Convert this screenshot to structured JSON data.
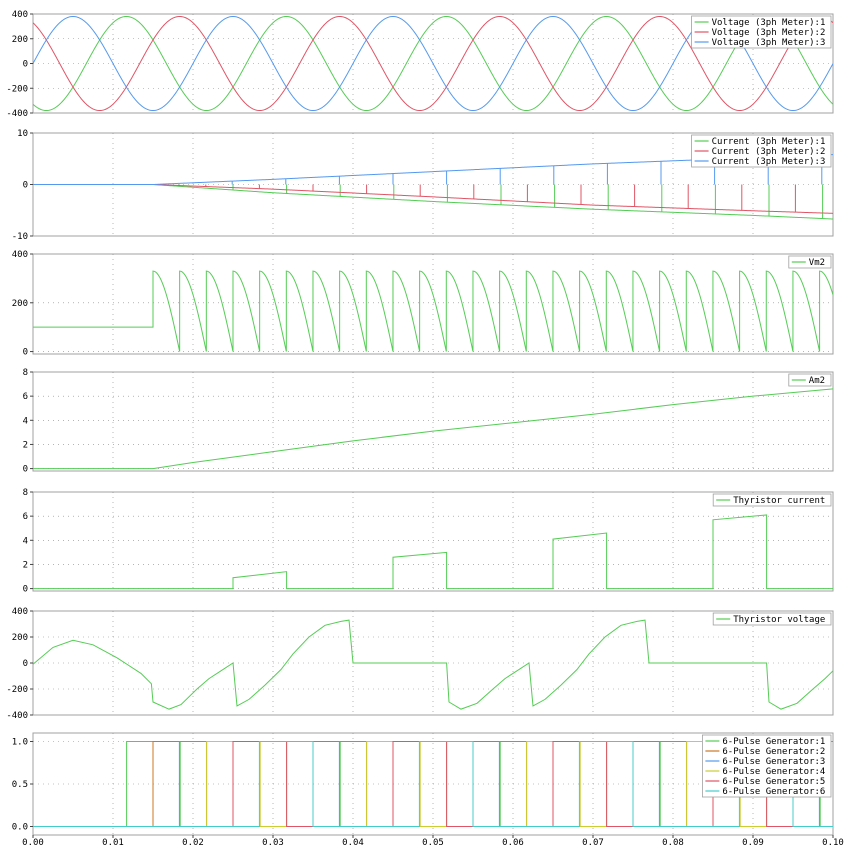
{
  "chart_data": [
    {
      "type": "line",
      "ylim": [
        -400,
        400
      ],
      "yticks": [
        400,
        200,
        0,
        -200,
        -400
      ],
      "legend_position": "top-right",
      "series": [
        {
          "name": "Voltage (3ph Meter):1",
          "color": "#55cc55",
          "kind": "sine",
          "amplitude": 380,
          "frequency_hz": 50,
          "phase_deg": -120
        },
        {
          "name": "Voltage (3ph Meter):2",
          "color": "#e05566",
          "kind": "sine",
          "amplitude": 380,
          "frequency_hz": 50,
          "phase_deg": 120
        },
        {
          "name": "Voltage (3ph Meter):3",
          "color": "#5599ee",
          "kind": "sine",
          "amplitude": 380,
          "frequency_hz": 50,
          "phase_deg": 0
        }
      ]
    },
    {
      "type": "line",
      "ylim": [
        -10,
        10
      ],
      "yticks": [
        10,
        0,
        -10
      ],
      "legend_position": "top-right",
      "series": [
        {
          "name": "Current (3ph Meter):1",
          "color": "#55cc55",
          "points": [
            [
              0,
              0
            ],
            [
              0.015,
              0
            ],
            [
              0.03,
              -1.6
            ],
            [
              0.05,
              -3.3
            ],
            [
              0.07,
              -4.8
            ],
            [
              0.09,
              -6.0
            ],
            [
              0.1,
              -6.7
            ]
          ]
        },
        {
          "name": "Current (3ph Meter):2",
          "color": "#e05566",
          "points": [
            [
              0,
              0
            ],
            [
              0.015,
              0
            ],
            [
              0.03,
              -0.9
            ],
            [
              0.05,
              -2.4
            ],
            [
              0.07,
              -4.0
            ],
            [
              0.09,
              -5.1
            ],
            [
              0.1,
              -5.6
            ]
          ]
        },
        {
          "name": "Current (3ph Meter):3",
          "color": "#5599ee",
          "points": [
            [
              0,
              0
            ],
            [
              0.015,
              0
            ],
            [
              0.03,
              1.0
            ],
            [
              0.05,
              2.5
            ],
            [
              0.07,
              4.0
            ],
            [
              0.09,
              5.2
            ],
            [
              0.1,
              5.8
            ]
          ]
        }
      ]
    },
    {
      "type": "line",
      "ylim": [
        -10,
        400
      ],
      "yticks": [
        400,
        200,
        0
      ],
      "legend_position": "top-right",
      "series": [
        {
          "name": "Vm2",
          "color": "#55cc55",
          "kind": "rectified",
          "initial": 100,
          "start": 0.015,
          "peak": 330,
          "period": 0.003333
        }
      ]
    },
    {
      "type": "line",
      "ylim": [
        -0.2,
        8
      ],
      "yticks": [
        8,
        6,
        4,
        2,
        0
      ],
      "legend_position": "top-right",
      "series": [
        {
          "name": "Am2",
          "color": "#55cc55",
          "points": [
            [
              0,
              0
            ],
            [
              0.015,
              0
            ],
            [
              0.02,
              0.5
            ],
            [
              0.03,
              1.4
            ],
            [
              0.04,
              2.3
            ],
            [
              0.05,
              3.1
            ],
            [
              0.06,
              3.8
            ],
            [
              0.07,
              4.5
            ],
            [
              0.08,
              5.3
            ],
            [
              0.09,
              6.0
            ],
            [
              0.1,
              6.6
            ]
          ]
        }
      ]
    },
    {
      "type": "line",
      "ylim": [
        -0.2,
        8
      ],
      "yticks": [
        8,
        6,
        4,
        2,
        0
      ],
      "legend_position": "top-right",
      "series": [
        {
          "name": "Thyristor current",
          "color": "#55cc55",
          "pulses": [
            [
              0.025,
              0.0317,
              0.9,
              1.4
            ],
            [
              0.045,
              0.0517,
              2.6,
              3.0
            ],
            [
              0.065,
              0.0717,
              4.1,
              4.6
            ],
            [
              0.085,
              0.0917,
              5.7,
              6.1
            ]
          ]
        }
      ]
    },
    {
      "type": "line",
      "ylim": [
        -400,
        400
      ],
      "yticks": [
        400,
        200,
        0,
        -200,
        -400
      ],
      "legend_position": "top-right",
      "series": [
        {
          "name": "Thyristor voltage",
          "color": "#55cc55",
          "points": [
            [
              0,
              -10
            ],
            [
              0.0025,
              120
            ],
            [
              0.005,
              175
            ],
            [
              0.0075,
              140
            ],
            [
              0.0105,
              40
            ],
            [
              0.0135,
              -80
            ],
            [
              0.0148,
              -160
            ],
            [
              0.015,
              -300
            ],
            [
              0.017,
              -355
            ],
            [
              0.0185,
              -320
            ],
            [
              0.0205,
              -200
            ],
            [
              0.022,
              -120
            ],
            [
              0.0235,
              -60
            ],
            [
              0.025,
              0
            ],
            [
              0.0255,
              -330
            ],
            [
              0.027,
              -280
            ],
            [
              0.029,
              -170
            ],
            [
              0.031,
              -50
            ],
            [
              0.0325,
              70
            ],
            [
              0.0345,
              200
            ],
            [
              0.0365,
              290
            ],
            [
              0.0385,
              320
            ],
            [
              0.0395,
              330
            ],
            [
              0.04,
              0
            ],
            [
              0.0517,
              0
            ],
            [
              0.052,
              -300
            ],
            [
              0.0535,
              -355
            ],
            [
              0.0555,
              -310
            ],
            [
              0.0575,
              -200
            ],
            [
              0.059,
              -120
            ],
            [
              0.0605,
              -60
            ],
            [
              0.062,
              0
            ],
            [
              0.0625,
              -330
            ],
            [
              0.064,
              -280
            ],
            [
              0.066,
              -170
            ],
            [
              0.068,
              -50
            ],
            [
              0.0695,
              70
            ],
            [
              0.0715,
              200
            ],
            [
              0.0735,
              290
            ],
            [
              0.0755,
              320
            ],
            [
              0.0765,
              330
            ],
            [
              0.077,
              0
            ],
            [
              0.0917,
              0
            ],
            [
              0.092,
              -300
            ],
            [
              0.0935,
              -355
            ],
            [
              0.0955,
              -310
            ],
            [
              0.0975,
              -200
            ],
            [
              0.099,
              -120
            ],
            [
              0.1,
              -60
            ]
          ],
          "repeat": {
            "template_from": 0.0317,
            "template_to": 0.0517,
            "period": 0.02
          }
        }
      ]
    },
    {
      "type": "line",
      "ylim": [
        -0.1,
        1.1
      ],
      "yticks": [
        1.0,
        0.5,
        0.0
      ],
      "tick_format": "fixed1",
      "legend_position": "top-right",
      "series": [
        {
          "name": "6-Pulse Generator:1",
          "color": "#55cc55",
          "kind": "pulses",
          "first": 0.0117,
          "spacing": 0.02
        },
        {
          "name": "6-Pulse Generator:2",
          "color": "#cc7722",
          "kind": "pulses",
          "first": 0.015,
          "spacing": 0.02
        },
        {
          "name": "6-Pulse Generator:3",
          "color": "#5599ee",
          "kind": "pulses",
          "first": 0.0183,
          "spacing": 0.02
        },
        {
          "name": "6-Pulse Generator:4",
          "color": "#cccc33",
          "kind": "pulses",
          "first": 0.0217,
          "spacing": 0.02
        },
        {
          "name": "6-Pulse Generator:5",
          "color": "#e05566",
          "kind": "pulses",
          "first": 0.025,
          "spacing": 0.02
        },
        {
          "name": "6-Pulse Generator:6",
          "color": "#44cccc",
          "kind": "pulses",
          "first": 0.0283,
          "spacing": 0.02
        }
      ]
    }
  ],
  "x_axis": {
    "xlim": [
      0,
      0.1
    ],
    "ticks": [
      "0.00",
      "0.01",
      "0.02",
      "0.03",
      "0.04",
      "0.05",
      "0.06",
      "0.07",
      "0.08",
      "0.09",
      "0.10"
    ]
  }
}
